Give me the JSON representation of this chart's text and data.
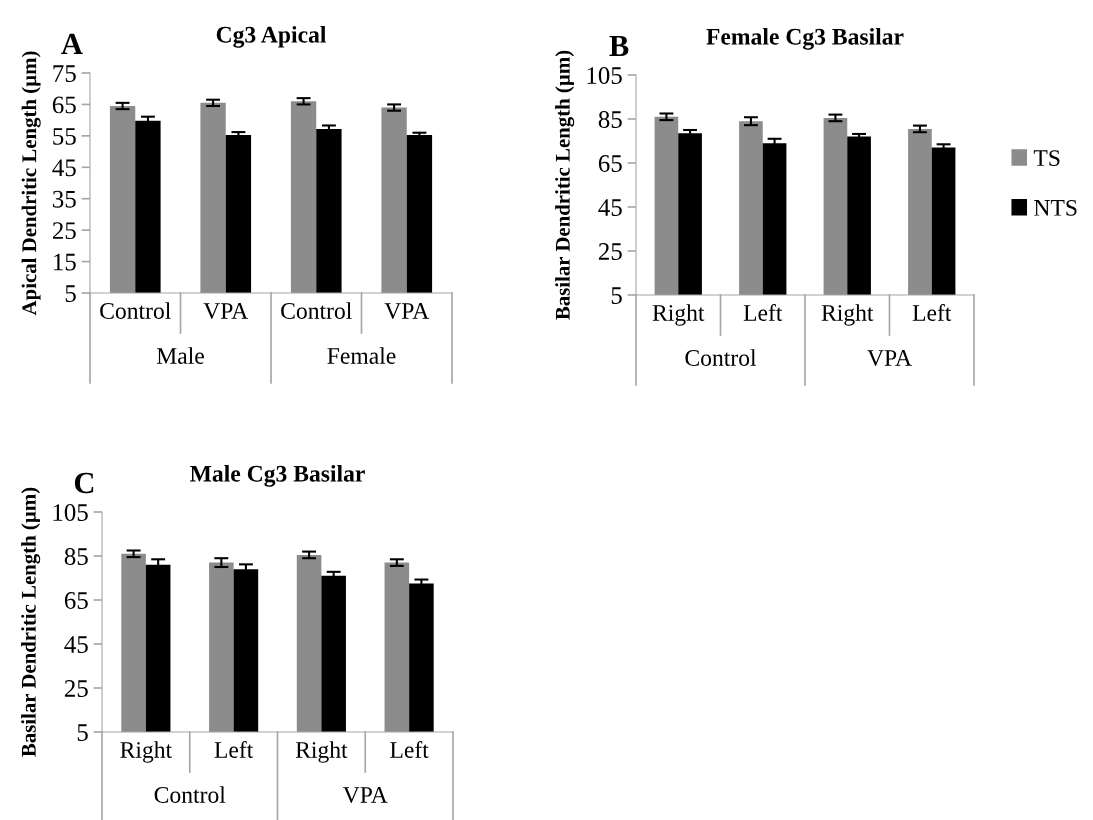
{
  "chart_data": [
    {
      "type": "bar",
      "title": "Cg3 Apical",
      "ylabel": "Apical Dendritic Length (µm)",
      "categories": [
        "Control",
        "VPA",
        "Control",
        "VPA"
      ],
      "annotations": [
        "A",
        "Male",
        "Female"
      ],
      "ylim": [
        5,
        75
      ],
      "yticks": [
        5,
        15,
        25,
        35,
        45,
        55,
        65,
        75
      ],
      "grid": false,
      "series": [
        {
          "color": "#8c8c8c",
          "values": [
            64.5,
            65.5,
            66,
            64
          ],
          "errors": [
            1,
            1,
            1,
            1
          ]
        },
        {
          "color": "#000000",
          "values": [
            59.8,
            55.3,
            57.2,
            55.3
          ],
          "errors": [
            1.3,
            0.9,
            1.1,
            0.7
          ]
        }
      ]
    },
    {
      "type": "bar",
      "title": "Female Cg3 Basilar",
      "ylabel": "Basilar Dendritic Length (µm)",
      "categories": [
        "Right",
        "Left",
        "Right",
        "Left"
      ],
      "annotations": [
        "B",
        "Control",
        "VPA"
      ],
      "ylim": [
        5,
        105
      ],
      "yticks": [
        5,
        25,
        45,
        65,
        85,
        105
      ],
      "grid": false,
      "legend": "right",
      "series": [
        {
          "name": "TS",
          "color": "#8c8c8c",
          "values": [
            86,
            84,
            85.5,
            80.5
          ],
          "errors": [
            1.5,
            1.8,
            1.5,
            1.5
          ]
        },
        {
          "name": "NTS",
          "color": "#000000",
          "values": [
            78.5,
            74,
            77,
            72
          ],
          "errors": [
            1.5,
            2,
            1.2,
            1.5
          ]
        }
      ]
    },
    {
      "type": "bar",
      "title": "Male Cg3 Basilar",
      "ylabel": "Basilar Dendritic Length (µm)",
      "categories": [
        "Right",
        "Left",
        "Right",
        "Left"
      ],
      "annotations": [
        "C",
        "Control",
        "VPA"
      ],
      "ylim": [
        5,
        105
      ],
      "yticks": [
        5,
        25,
        45,
        65,
        85,
        105
      ],
      "grid": false,
      "series": [
        {
          "color": "#8c8c8c",
          "values": [
            86,
            82,
            85.5,
            82
          ],
          "errors": [
            1.5,
            2,
            1.5,
            1.5
          ]
        },
        {
          "color": "#000000",
          "values": [
            81,
            79,
            76,
            72.5
          ],
          "errors": [
            2.5,
            2.2,
            1.8,
            1.8
          ]
        }
      ]
    }
  ]
}
